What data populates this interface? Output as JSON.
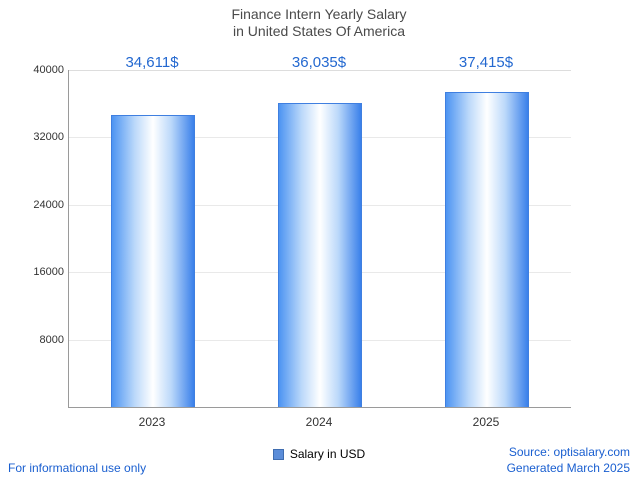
{
  "title": {
    "line1": "Finance Intern Yearly Salary",
    "line2": "in United States Of America"
  },
  "chart_data": {
    "type": "bar",
    "title": "Finance Intern Yearly Salary in United States Of America",
    "categories": [
      "2023",
      "2024",
      "2025"
    ],
    "values": [
      34611,
      36035,
      37415
    ],
    "value_labels": [
      "34,611$",
      "36,035$",
      "37,415$"
    ],
    "series_name": "Salary in USD",
    "xlabel": "",
    "ylabel": "",
    "ylim": [
      0,
      40000
    ],
    "yticks_top_to_bottom": [
      "40000",
      "32000",
      "24000",
      "16000",
      "8000"
    ],
    "grid": "horizontal",
    "legend_position": "bottom-center",
    "bar_gradient": [
      "#4d94f2",
      "#ffffff",
      "#3a80ea"
    ],
    "bar_border_color": "#3f7fe0",
    "value_label_color": "#2368d0"
  },
  "legend": {
    "label": "Salary in USD"
  },
  "footer": {
    "left_note": "For informational use only",
    "source": "Source: optisalary.com",
    "generated": "Generated March 2025"
  }
}
